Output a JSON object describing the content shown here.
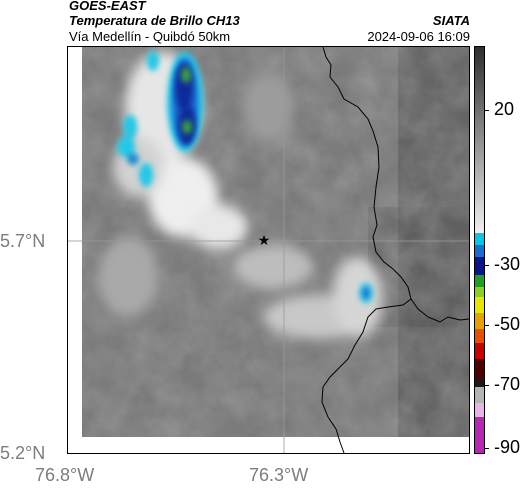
{
  "header": {
    "satellite": "GOES-EAST",
    "product": "Temperatura de Brillo CH13",
    "region": "Vía Medellín - Quibdó 50km",
    "agency": "SIATA",
    "timestamp": "2024-09-06 16:09"
  },
  "axes": {
    "lat_ticks": [
      "5.7°N",
      "5.2°N"
    ],
    "lon_ticks": [
      "76.8°W",
      "76.3°W"
    ]
  },
  "colorbar": {
    "ticks": [
      "20",
      "-30",
      "-50",
      "-70",
      "-90"
    ],
    "colors": {
      "gray_top": "#2e2e2e",
      "gray_bottom": "#f0f0f0",
      "cyan": "#00c8e6",
      "navy": "#08148c",
      "green": "#1ea01e",
      "yellow": "#e6e600",
      "orange": "#e68200",
      "red": "#c80000",
      "dark_red": "#500000",
      "magenta": "#b428b4"
    }
  },
  "map": {
    "marker": "star-icon",
    "colors": {
      "land_gray": "#7a7a7a",
      "cloud_white": "#eeeeee",
      "deep_blue": "#0a2a9a",
      "cyan": "#22c8e8",
      "green": "#3aa040",
      "border": "#000000",
      "grid": "#9a9a9a"
    }
  }
}
